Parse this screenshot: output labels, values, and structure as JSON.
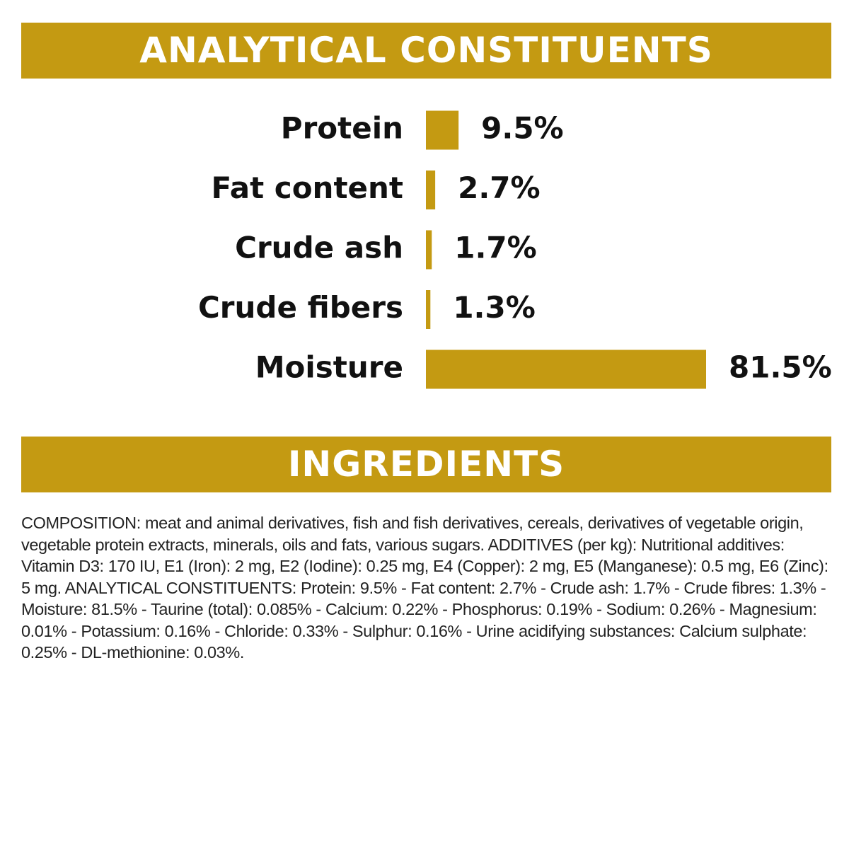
{
  "analytical_header": "ANALYTICAL CONSTITUENTS",
  "chart_data": {
    "type": "bar",
    "orientation": "horizontal",
    "color": "#c49a12",
    "categories": [
      "Protein",
      "Fat content",
      "Crude ash",
      "Crude fibers",
      "Moisture"
    ],
    "values": [
      9.5,
      2.7,
      1.7,
      1.3,
      81.5
    ],
    "value_labels": [
      "9.5%",
      "2.7%",
      "1.7%",
      "1.3%",
      "81.5%"
    ]
  },
  "ingredients_header": "INGREDIENTS",
  "ingredients_text": "COMPOSITION: meat and animal derivatives, fish and fish derivatives, cereals, derivatives of vegetable origin, vegetable protein extracts, minerals, oils and fats, various sugars. ADDITIVES (per kg): Nutritional additives: Vitamin D3: 170 IU, E1 (Iron): 2 mg, E2 (Iodine): 0.25 mg, E4 (Copper): 2 mg, E5 (Manganese): 0.5 mg, E6 (Zinc): 5 mg. ANALYTICAL CONSTITUENTS: Protein: 9.5% - Fat content: 2.7% - Crude ash: 1.7% - Crude fibres: 1.3% - Moisture: 81.5% - Taurine (total): 0.085% - Calcium: 0.22% - Phosphorus: 0.19% - Sodium: 0.26% - Magnesium: 0.01% - Potassium: 0.16% - Chloride: 0.33% - Sulphur: 0.16% - Urine acidifying substances: Calcium sulphate: 0.25% - DL-methionine: 0.03%."
}
